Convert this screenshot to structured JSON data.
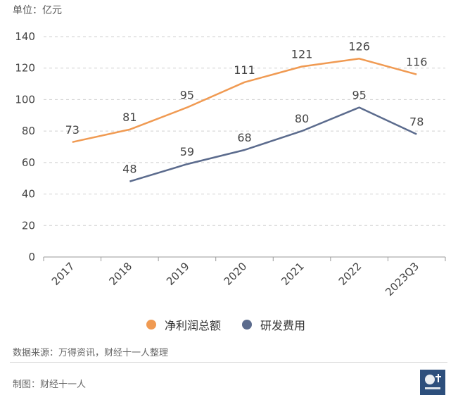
{
  "unit_label": "单位：亿元",
  "colors": {
    "profit": "#F09A52",
    "rnd": "#5B6B8D",
    "grid": "#cfcfcf",
    "axis": "#999999",
    "text": "#444444"
  },
  "chart_data": {
    "type": "line",
    "categories": [
      "2017",
      "2018",
      "2019",
      "2020",
      "2021",
      "2022",
      "2023Q3"
    ],
    "series": [
      {
        "name": "净利润总额",
        "values": [
          73,
          81,
          95,
          111,
          121,
          126,
          116
        ]
      },
      {
        "name": "研发费用",
        "values": [
          null,
          48,
          59,
          68,
          80,
          95,
          78
        ]
      }
    ],
    "ylim": [
      0,
      140
    ],
    "yticks": [
      0,
      20,
      40,
      60,
      80,
      100,
      120,
      140
    ],
    "grid": true,
    "legend_position": "bottom"
  },
  "source": "数据来源：万得资讯，财经十一人整理",
  "maker": "制图：财经十一人",
  "logo": {
    "text": "财经十一人",
    "icon": "seal-logo-icon"
  }
}
